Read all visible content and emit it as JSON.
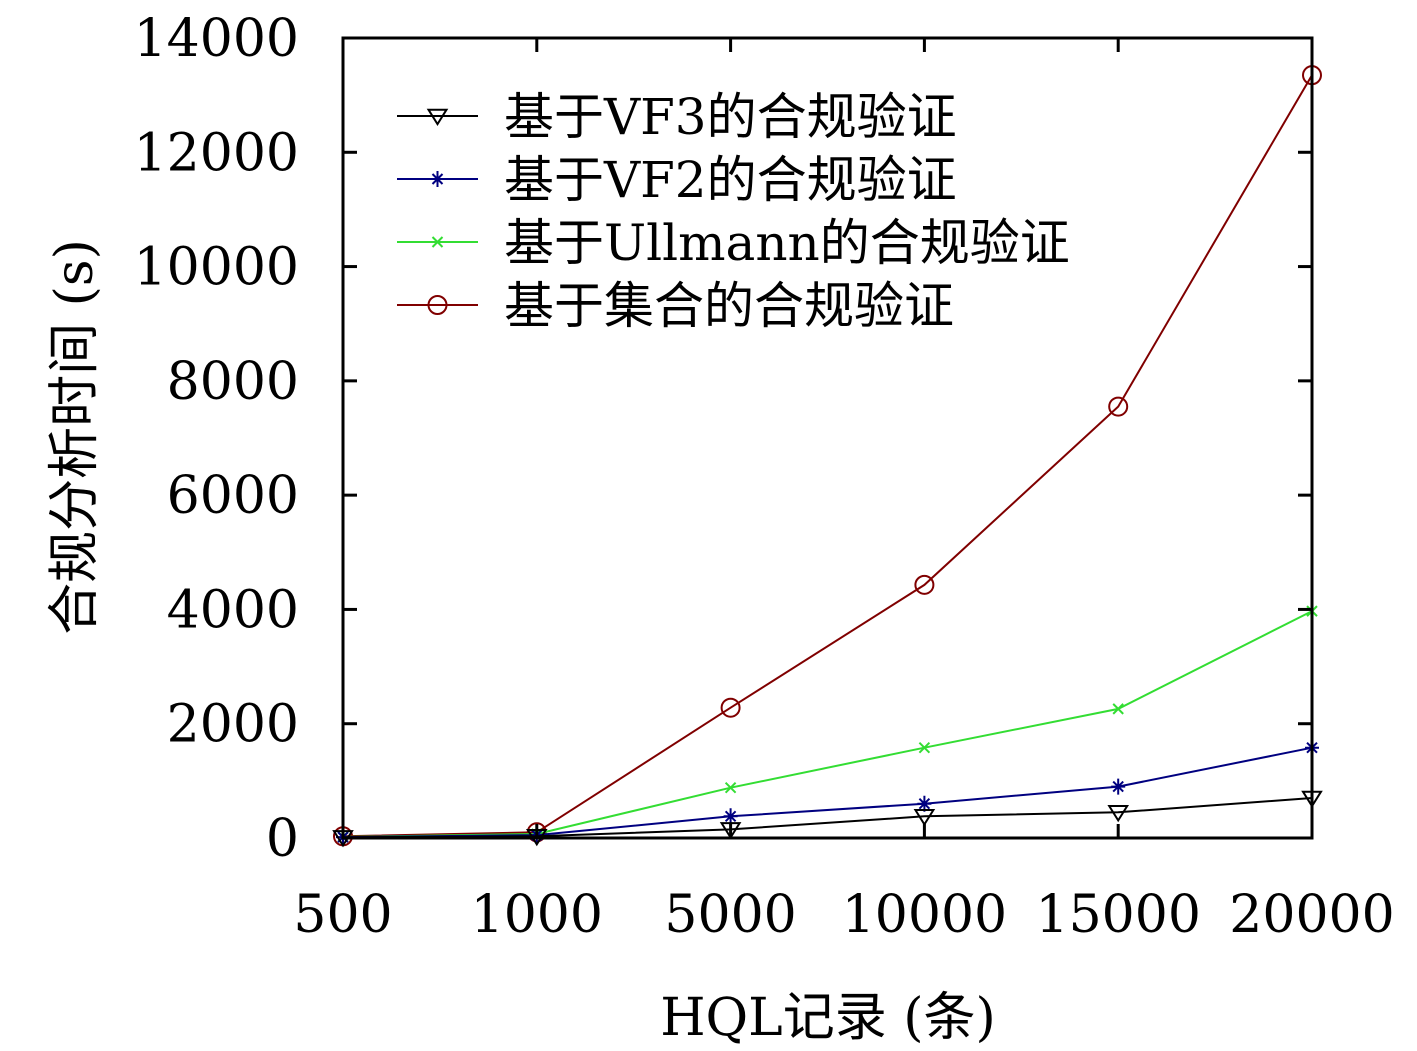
{
  "chart_data": {
    "type": "line",
    "title": "",
    "xlabel": "HQL记录 (条)",
    "ylabel": "合规分析时间 (s)",
    "categories": [
      "500",
      "1000",
      "5000",
      "10000",
      "15000",
      "20000"
    ],
    "ylim": [
      0,
      14000
    ],
    "yticks": [
      "0",
      "2000",
      "4000",
      "6000",
      "8000",
      "10000",
      "12000",
      "14000"
    ],
    "grid": false,
    "legend_position": "top-left",
    "series": [
      {
        "name": "基于VF3的合规验证",
        "values": [
          10,
          30,
          150,
          380,
          450,
          700
        ],
        "color": "#000000",
        "marker": "triangle-down"
      },
      {
        "name": "基于VF2的合规验证",
        "values": [
          15,
          50,
          380,
          600,
          900,
          1580
        ],
        "color": "#000080",
        "marker": "star"
      },
      {
        "name": "基于Ullmann的合规验证",
        "values": [
          20,
          70,
          880,
          1580,
          2260,
          3970
        ],
        "color": "#33dd33",
        "marker": "x"
      },
      {
        "name": "基于集合的合规验证",
        "values": [
          30,
          100,
          2280,
          4430,
          7550,
          13350
        ],
        "color": "#800000",
        "marker": "circle"
      }
    ]
  }
}
